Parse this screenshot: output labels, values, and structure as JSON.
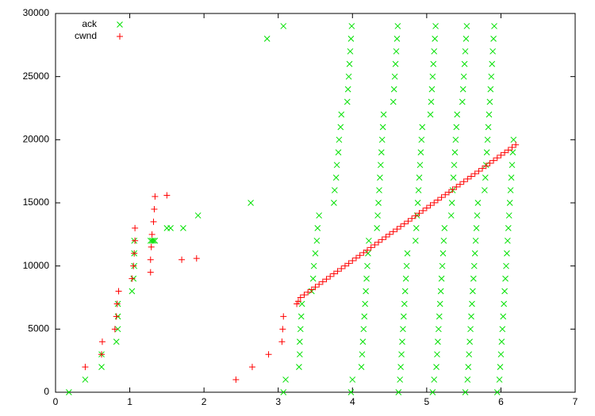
{
  "chart_data": {
    "type": "scatter",
    "xlim": [
      0,
      7
    ],
    "xticks": [
      0,
      1,
      2,
      3,
      4,
      5,
      6,
      7
    ],
    "ylim": [
      0,
      30000
    ],
    "yticks": [
      0,
      5000,
      10000,
      15000,
      20000,
      25000,
      30000
    ],
    "legend": "top-left",
    "series": [
      {
        "name": "ack",
        "color": "#00e000",
        "marker": "x",
        "x": [
          0.18,
          0.4,
          0.62,
          0.62,
          0.82,
          0.84,
          0.84,
          0.84,
          1.03,
          1.05,
          1.06,
          1.06,
          1.06,
          1.28,
          1.3,
          1.32,
          1.34,
          1.5,
          1.55,
          1.72,
          1.92,
          2.63,
          2.85,
          3.07,
          3.1,
          3.07,
          3.28,
          3.29,
          3.29,
          3.3,
          3.31,
          3.32,
          3.45,
          3.47,
          3.48,
          3.5,
          3.52,
          3.53,
          3.55,
          3.75,
          3.76,
          3.78,
          3.79,
          3.81,
          3.82,
          3.84,
          3.85,
          3.93,
          3.94,
          3.95,
          3.96,
          3.97,
          3.98,
          3.99,
          3.98,
          4.0,
          4.12,
          4.13,
          4.14,
          4.15,
          4.16,
          4.17,
          4.18,
          4.19,
          4.2,
          4.21,
          4.22,
          4.33,
          4.34,
          4.35,
          4.36,
          4.37,
          4.38,
          4.39,
          4.4,
          4.41,
          4.42,
          4.55,
          4.56,
          4.57,
          4.58,
          4.59,
          4.6,
          4.61,
          4.62,
          4.64,
          4.65,
          4.66,
          4.67,
          4.68,
          4.69,
          4.7,
          4.71,
          4.72,
          4.73,
          4.74,
          4.85,
          4.86,
          4.87,
          4.88,
          4.89,
          4.9,
          4.91,
          4.92,
          4.93,
          4.94,
          5.05,
          5.06,
          5.07,
          5.08,
          5.09,
          5.1,
          5.11,
          5.12,
          5.08,
          5.1,
          5.13,
          5.14,
          5.15,
          5.16,
          5.17,
          5.18,
          5.19,
          5.2,
          5.21,
          5.22,
          5.23,
          5.24,
          5.33,
          5.34,
          5.35,
          5.36,
          5.37,
          5.38,
          5.39,
          5.4,
          5.41,
          5.48,
          5.49,
          5.5,
          5.51,
          5.52,
          5.53,
          5.54,
          5.52,
          5.55,
          5.56,
          5.57,
          5.58,
          5.59,
          5.6,
          5.61,
          5.62,
          5.63,
          5.64,
          5.65,
          5.66,
          5.67,
          5.68,
          5.69,
          5.78,
          5.79,
          5.8,
          5.81,
          5.82,
          5.83,
          5.84,
          5.85,
          5.86,
          5.87,
          5.88,
          5.89,
          5.9,
          5.91,
          5.95,
          5.98,
          5.99,
          6.0,
          6.01,
          6.02,
          6.03,
          6.04,
          6.05,
          6.06,
          6.07,
          6.08,
          6.09,
          6.1,
          6.11,
          6.12,
          6.13,
          6.14,
          6.15,
          6.16,
          6.17
        ],
        "values": [
          0,
          1000,
          2000,
          3000,
          4000,
          5000,
          6000,
          7000,
          8000,
          9000,
          10000,
          11000,
          12000,
          12000,
          12000,
          12000,
          12000,
          13000,
          13000,
          13000,
          14000,
          15000,
          28000,
          29000,
          1000,
          0,
          2000,
          3000,
          4000,
          5000,
          6000,
          7000,
          8000,
          9000,
          10000,
          11000,
          12000,
          13000,
          14000,
          15000,
          16000,
          17000,
          18000,
          19000,
          20000,
          21000,
          22000,
          23000,
          24000,
          25000,
          26000,
          27000,
          28000,
          29000,
          0,
          1000,
          2000,
          3000,
          4000,
          5000,
          6000,
          7000,
          8000,
          9000,
          10000,
          11000,
          12000,
          13000,
          14000,
          15000,
          16000,
          17000,
          18000,
          19000,
          20000,
          21000,
          22000,
          23000,
          24000,
          25000,
          26000,
          27000,
          28000,
          29000,
          0,
          1000,
          2000,
          3000,
          4000,
          5000,
          6000,
          7000,
          8000,
          9000,
          10000,
          11000,
          12000,
          13000,
          14000,
          15000,
          16000,
          17000,
          18000,
          19000,
          20000,
          21000,
          22000,
          23000,
          24000,
          25000,
          26000,
          27000,
          28000,
          29000,
          0,
          1000,
          2000,
          3000,
          4000,
          5000,
          6000,
          7000,
          8000,
          9000,
          10000,
          11000,
          12000,
          13000,
          14000,
          15000,
          16000,
          17000,
          18000,
          19000,
          20000,
          21000,
          22000,
          23000,
          24000,
          25000,
          26000,
          27000,
          28000,
          29000,
          0,
          1000,
          2000,
          3000,
          4000,
          5000,
          6000,
          7000,
          8000,
          9000,
          10000,
          11000,
          12000,
          13000,
          14000,
          15000,
          16000,
          17000,
          18000,
          19000,
          20000,
          21000,
          22000,
          23000,
          24000,
          25000,
          26000,
          27000,
          28000,
          29000,
          0,
          1000,
          2000,
          3000,
          4000,
          5000,
          6000,
          7000,
          8000,
          9000,
          10000,
          11000,
          12000,
          13000,
          14000,
          15000,
          16000,
          17000,
          18000,
          19000,
          20000
        ]
      },
      {
        "name": "cwnd",
        "color": "#ff0000",
        "marker": "+",
        "x": [
          0.4,
          0.62,
          0.63,
          0.8,
          0.82,
          0.83,
          0.85,
          1.03,
          1.05,
          1.06,
          1.07,
          1.07,
          1.28,
          1.28,
          1.29,
          1.3,
          1.32,
          1.33,
          1.34,
          1.5,
          1.7,
          1.9,
          2.43,
          2.65,
          2.87,
          3.05,
          3.06,
          3.07,
          3.25,
          3.27,
          3.3,
          3.35,
          3.4,
          3.45,
          3.5,
          3.55,
          3.6,
          3.65,
          3.7,
          3.75,
          3.8,
          3.85,
          3.9,
          3.95,
          4.0,
          4.05,
          4.1,
          4.15,
          4.2,
          4.25,
          4.3,
          4.35,
          4.4,
          4.45,
          4.5,
          4.55,
          4.6,
          4.65,
          4.7,
          4.75,
          4.8,
          4.85,
          4.9,
          4.95,
          5.0,
          5.05,
          5.1,
          5.15,
          5.2,
          5.25,
          5.3,
          5.35,
          5.4,
          5.45,
          5.5,
          5.55,
          5.6,
          5.65,
          5.7,
          5.75,
          5.8,
          5.85,
          5.9,
          5.95,
          6.0,
          6.05,
          6.1,
          6.15,
          6.2
        ],
        "values": [
          2000,
          3000,
          4000,
          5000,
          6000,
          7000,
          8000,
          9000,
          10000,
          11000,
          12000,
          13000,
          9500,
          10500,
          11500,
          12500,
          13500,
          14500,
          15500,
          15600,
          10500,
          10600,
          1000,
          2000,
          3000,
          4000,
          5000,
          6000,
          7000,
          7200,
          7500,
          7710,
          7920,
          8130,
          8330,
          8540,
          8750,
          8960,
          9170,
          9380,
          9590,
          9790,
          10000,
          10210,
          10420,
          10630,
          10840,
          11050,
          11250,
          11460,
          11670,
          11880,
          12090,
          12300,
          12510,
          12720,
          12920,
          13130,
          13340,
          13550,
          13760,
          13970,
          14180,
          14380,
          14590,
          14800,
          15010,
          15220,
          15430,
          15640,
          15840,
          16050,
          16260,
          16470,
          16680,
          16890,
          17100,
          17310,
          17510,
          17720,
          17930,
          18140,
          18350,
          18560,
          18770,
          18980,
          19180,
          19390,
          19600
        ]
      }
    ]
  }
}
